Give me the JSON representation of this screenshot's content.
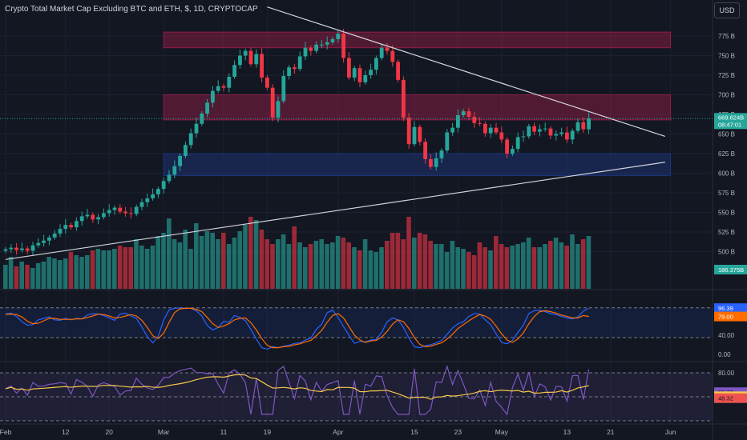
{
  "header": {
    "title": "Crypto Total Market Cap Excluding BTC and ETH, $, 1D, CRYPTOCAP",
    "currency": "USD"
  },
  "price_axis": {
    "ticks": [
      {
        "label": "775 B",
        "value": 775
      },
      {
        "label": "750 B",
        "value": 750
      },
      {
        "label": "725 B",
        "value": 725
      },
      {
        "label": "700 B",
        "value": 700
      },
      {
        "label": "675 B",
        "value": 675
      },
      {
        "label": "650 B",
        "value": 650
      },
      {
        "label": "625 B",
        "value": 625
      },
      {
        "label": "600 B",
        "value": 600
      },
      {
        "label": "575 B",
        "value": 575
      },
      {
        "label": "550 B",
        "value": 550
      },
      {
        "label": "525 B",
        "value": 525
      },
      {
        "label": "500 B",
        "value": 500
      }
    ],
    "last_price_label": "669.624B",
    "countdown": "08:47:01",
    "volume_label": "186.375B"
  },
  "time_axis": {
    "ticks": [
      {
        "label": "Feb",
        "index": 1
      },
      {
        "label": "12",
        "index": 12
      },
      {
        "label": "20",
        "index": 20
      },
      {
        "label": "Mar",
        "index": 30
      },
      {
        "label": "11",
        "index": 41
      },
      {
        "label": "19",
        "index": 49
      },
      {
        "label": "Apr",
        "index": 62
      },
      {
        "label": "15",
        "index": 76
      },
      {
        "label": "23",
        "index": 84
      },
      {
        "label": "May",
        "index": 92
      },
      {
        "label": "13",
        "index": 104
      },
      {
        "label": "21",
        "index": 112
      },
      {
        "label": "Jun",
        "index": 123
      }
    ]
  },
  "stoch_panel": {
    "labels": [
      {
        "label": "96.39",
        "value": 96.39,
        "color": "#2962ff"
      },
      {
        "label": "79.00",
        "value": 79.0,
        "color": "#ff6d00"
      }
    ],
    "ticks": [
      {
        "label": "40.00",
        "value": 40
      },
      {
        "label": "0.00",
        "value": 0
      }
    ]
  },
  "rsi_panel": {
    "labels": [
      {
        "label": "55.77",
        "value": 55.77,
        "color": "#7e57c2"
      },
      {
        "label": "50.66",
        "value": 50.66,
        "color": "#f7c948"
      },
      {
        "label": "48.32",
        "value": 48.32,
        "color": "#ef5350"
      }
    ],
    "ticks": [
      {
        "label": "80.00",
        "value": 80
      }
    ]
  },
  "colors": {
    "up": "#26a69a",
    "down": "#f23645",
    "background": "#131722",
    "resistance_zone": "#a61e4d",
    "support_zone": "#1e3a8a",
    "trendline": "#d1d4dc"
  },
  "chart_data": {
    "type": "candlestick",
    "title": "Crypto Total Market Cap Excluding BTC and ETH, $, 1D, CRYPTOCAP",
    "unit": "B USD",
    "ylim": [
      490,
      795
    ],
    "zones": [
      {
        "kind": "resistance",
        "low": 760,
        "high": 780
      },
      {
        "kind": "resistance",
        "low": 668,
        "high": 700
      },
      {
        "kind": "support",
        "low": 597,
        "high": 625
      }
    ],
    "trendlines": [
      {
        "kind": "descending",
        "from": {
          "index": 49,
          "value": 812
        },
        "to": {
          "index": 122,
          "value": 647
        }
      },
      {
        "kind": "ascending",
        "from": {
          "index": 1,
          "value": 490
        },
        "to": {
          "index": 122,
          "value": 614
        }
      }
    ],
    "candles_close": [
      503,
      505,
      502,
      504,
      501,
      508,
      511,
      514,
      518,
      523,
      529,
      534,
      531,
      539,
      545,
      547,
      541,
      544,
      549,
      553,
      556,
      551,
      549,
      548,
      557,
      563,
      568,
      573,
      580,
      590,
      598,
      609,
      622,
      636,
      651,
      663,
      676,
      690,
      705,
      711,
      709,
      723,
      738,
      750,
      756,
      739,
      752,
      722,
      709,
      671,
      692,
      724,
      735,
      733,
      749,
      760,
      756,
      764,
      764,
      767,
      771,
      778,
      747,
      722,
      734,
      716,
      725,
      732,
      747,
      760,
      756,
      742,
      719,
      671,
      637,
      659,
      640,
      618,
      608,
      619,
      629,
      652,
      658,
      674,
      679,
      672,
      664,
      663,
      651,
      658,
      652,
      643,
      625,
      631,
      646,
      647,
      660,
      653,
      656,
      657,
      648,
      650,
      652,
      643,
      654,
      665,
      656,
      670
    ],
    "volume": [
      15,
      20,
      14,
      17,
      15,
      13,
      16,
      17,
      20,
      19,
      18,
      19,
      23,
      21,
      20,
      21,
      24,
      25,
      24,
      24,
      25,
      27,
      26,
      26,
      31,
      27,
      25,
      27,
      33,
      35,
      44,
      31,
      29,
      37,
      25,
      41,
      33,
      36,
      35,
      31,
      35,
      28,
      32,
      36,
      40,
      45,
      43,
      37,
      31,
      28,
      31,
      34,
      28,
      39,
      29,
      26,
      28,
      30,
      31,
      28,
      29,
      33,
      32,
      29,
      26,
      24,
      31,
      24,
      23,
      26,
      30,
      35,
      35,
      31,
      45,
      32,
      35,
      34,
      30,
      28,
      28,
      23,
      30,
      26,
      25,
      23,
      21,
      29,
      26,
      24,
      33,
      28,
      26,
      27,
      28,
      29,
      32,
      26,
      26,
      28,
      30,
      32,
      29,
      27,
      34,
      28,
      31,
      33
    ],
    "stoch_k": [
      84,
      86,
      79,
      68,
      61,
      62,
      72,
      75,
      78,
      72,
      71,
      75,
      72,
      75,
      74,
      82,
      85,
      84,
      81,
      76,
      71,
      84,
      86,
      80,
      75,
      57,
      37,
      24,
      38,
      71,
      93,
      96,
      97,
      96,
      96,
      91,
      80,
      60,
      51,
      56,
      69,
      67,
      81,
      77,
      70,
      52,
      32,
      14,
      11,
      16,
      14,
      17,
      19,
      23,
      24,
      30,
      34,
      52,
      63,
      87,
      92,
      77,
      58,
      40,
      23,
      27,
      26,
      30,
      31,
      46,
      68,
      76,
      72,
      56,
      34,
      16,
      14,
      18,
      20,
      24,
      29,
      42,
      55,
      64,
      68,
      79,
      85,
      84,
      72,
      62,
      43,
      25,
      22,
      29,
      46,
      61,
      85,
      91,
      92,
      89,
      85,
      83,
      79,
      76,
      74,
      78,
      90,
      96
    ],
    "stoch_d": [
      83,
      84,
      83,
      78,
      69,
      64,
      65,
      70,
      75,
      75,
      73,
      73,
      73,
      74,
      74,
      77,
      80,
      84,
      83,
      80,
      76,
      77,
      80,
      83,
      80,
      71,
      56,
      39,
      33,
      44,
      67,
      87,
      95,
      96,
      96,
      94,
      89,
      77,
      64,
      56,
      59,
      64,
      72,
      75,
      76,
      66,
      51,
      33,
      19,
      14,
      14,
      16,
      17,
      20,
      22,
      26,
      29,
      39,
      50,
      67,
      81,
      85,
      76,
      58,
      40,
      30,
      25,
      28,
      29,
      36,
      48,
      63,
      72,
      68,
      54,
      35,
      21,
      16,
      17,
      21,
      24,
      32,
      42,
      54,
      62,
      70,
      77,
      83,
      80,
      73,
      59,
      43,
      30,
      25,
      32,
      45,
      64,
      79,
      89,
      91,
      89,
      86,
      82,
      79,
      76,
      76,
      81,
      79
    ]
  }
}
